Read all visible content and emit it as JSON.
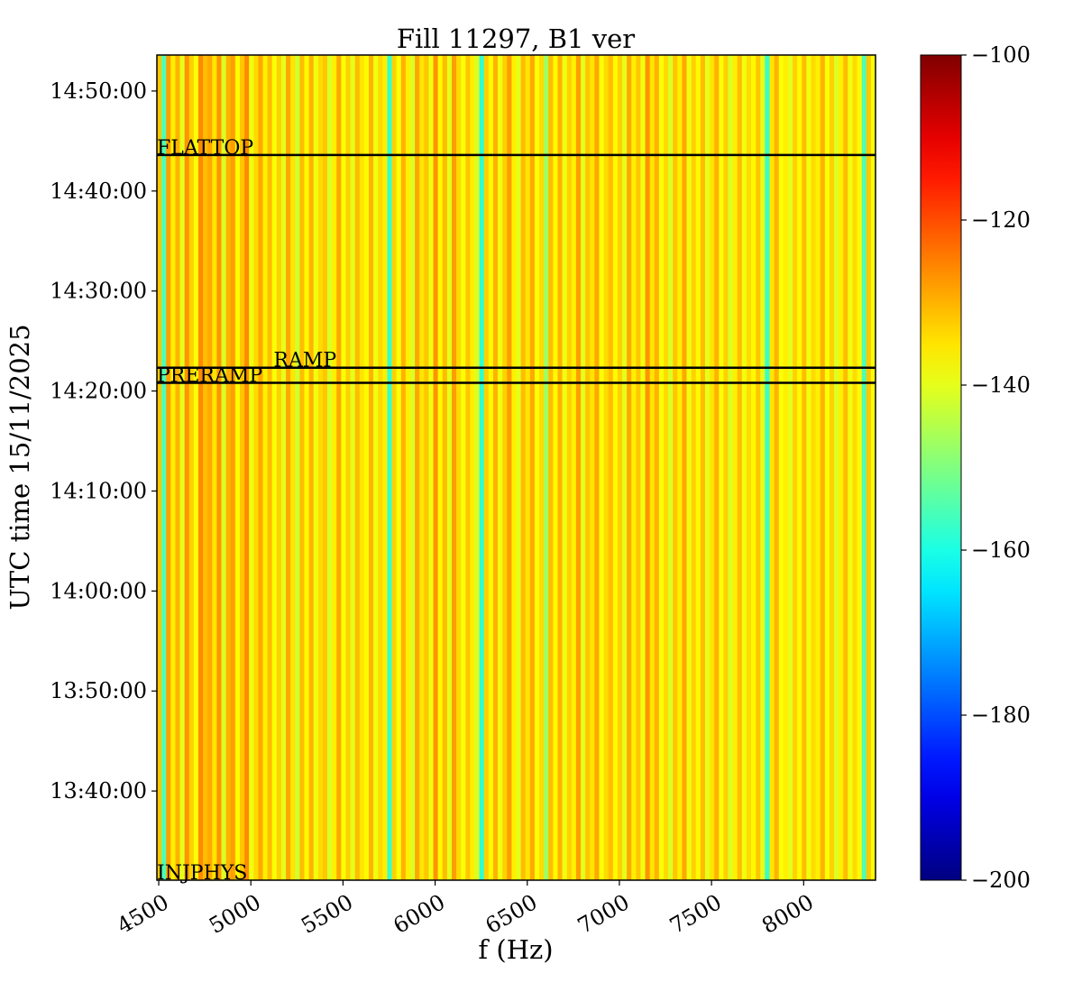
{
  "chart_data": {
    "type": "heatmap",
    "title": "Fill 11297, B1 ver",
    "xlabel": "f (Hz)",
    "ylabel": "UTC time 15/11/2025",
    "xlim": [
      4490,
      8390
    ],
    "ylim": [
      "13:31:05",
      "14:53:36"
    ],
    "x_ticks": [
      4500,
      5000,
      5500,
      6000,
      6500,
      7000,
      7500,
      8000
    ],
    "y_ticks": [
      "13:40:00",
      "13:50:00",
      "14:00:00",
      "14:10:00",
      "14:20:00",
      "14:30:00",
      "14:40:00",
      "14:50:00"
    ],
    "colormap": "jet",
    "colorbar": {
      "min": -200,
      "max": -100,
      "ticks": [
        -200,
        -180,
        -160,
        -140,
        -120,
        -100
      ]
    },
    "frequency_start_hz": 4490,
    "frequency_step_hz": 25,
    "power_per_frequency": [
      -132,
      -155,
      -128,
      -136,
      -130,
      -140,
      -127,
      -133,
      -138,
      -126,
      -131,
      -129,
      -135,
      -127,
      -141,
      -130,
      -128,
      -137,
      -132,
      -126,
      -139,
      -134,
      -129,
      -136,
      -131,
      -138,
      -133,
      -140,
      -129,
      -135,
      -142,
      -131,
      -137,
      -130,
      -139,
      -134,
      -132,
      -141,
      -136,
      -129,
      -138,
      -133,
      -140,
      -131,
      -135,
      -137,
      -130,
      -139,
      -134,
      -136,
      -157,
      -133,
      -138,
      -130,
      -136,
      -141,
      -129,
      -135,
      -132,
      -139,
      -127,
      -137,
      -131,
      -140,
      -128,
      -134,
      -138,
      -132,
      -136,
      -141,
      -158,
      -133,
      -137,
      -130,
      -139,
      -133,
      -128,
      -136,
      -140,
      -131,
      -135,
      -129,
      -138,
      -134,
      -147,
      -131,
      -137,
      -130,
      -139,
      -133,
      -136,
      -128,
      -140,
      -132,
      -135,
      -129,
      -138,
      -134,
      -131,
      -137,
      -133,
      -140,
      -129,
      -136,
      -132,
      -139,
      -127,
      -135,
      -130,
      -138,
      -134,
      -141,
      -132,
      -136,
      -129,
      -139,
      -133,
      -137,
      -131,
      -140,
      -135,
      -130,
      -138,
      -133,
      -141,
      -136,
      -131,
      -139,
      -134,
      -137,
      -132,
      -140,
      -157,
      -135,
      -130,
      -138,
      -136,
      -140,
      -133,
      -137,
      -131,
      -139,
      -134,
      -136,
      -130,
      -138,
      -133,
      -141,
      -136,
      -131,
      -139,
      -134,
      -137,
      -155,
      -132,
      -138
    ],
    "events": [
      {
        "label": "INJPHYS",
        "time": "13:31:05"
      },
      {
        "label": "PRERAMP",
        "time": "14:20:49"
      },
      {
        "label": "RAMP",
        "time": "14:22:20"
      },
      {
        "label": "FLATTOP",
        "time": "14:43:36"
      }
    ]
  }
}
